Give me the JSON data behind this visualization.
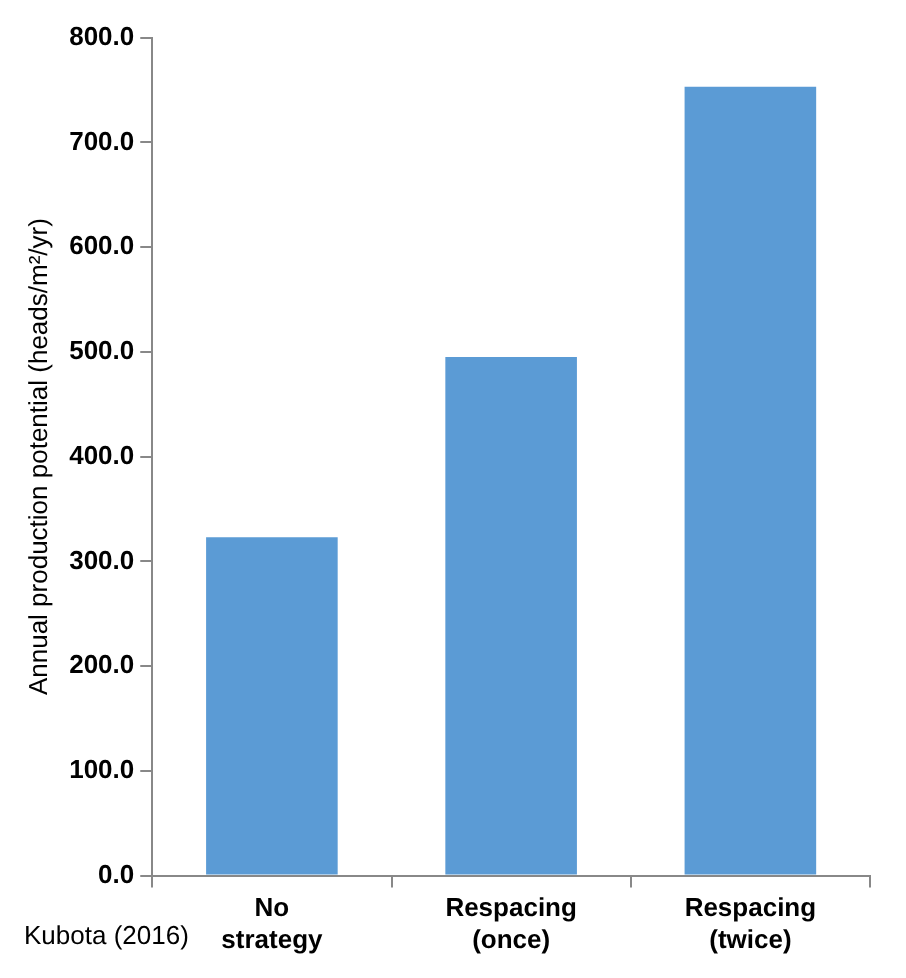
{
  "chart_data": {
    "type": "bar",
    "categories": [
      "No strategy",
      "Respacing (once)",
      "Respacing (twice)"
    ],
    "values": [
      323,
      495,
      753
    ],
    "color": "#5b9bd5",
    "ylabel": "Annual production potential (heads/m²/yr)",
    "ylim": [
      0,
      800
    ],
    "yticks": [
      {
        "value": 0,
        "label": "0.0"
      },
      {
        "value": 100,
        "label": "100.0"
      },
      {
        "value": 200,
        "label": "200.0"
      },
      {
        "value": 300,
        "label": "300.0"
      },
      {
        "value": 400,
        "label": "400.0"
      },
      {
        "value": 500,
        "label": "500.0"
      },
      {
        "value": 600,
        "label": "600.0"
      },
      {
        "value": 700,
        "label": "700.0"
      },
      {
        "value": 800,
        "label": "800.0"
      }
    ],
    "grid": false,
    "legend": false,
    "annotations": [
      "Kubota (2016)"
    ]
  }
}
